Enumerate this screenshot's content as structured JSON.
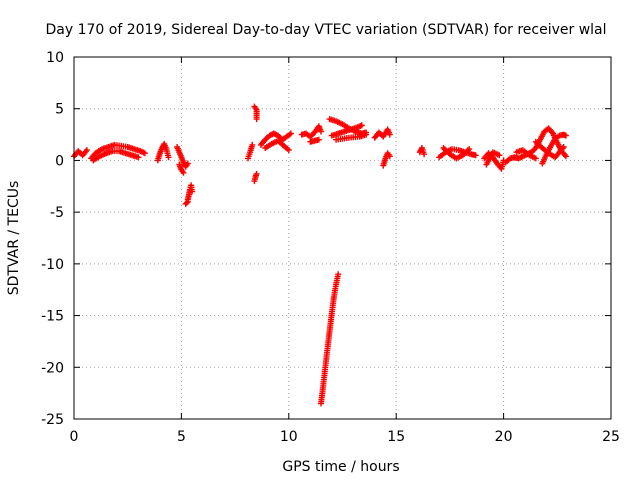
{
  "chart_data": {
    "type": "scatter",
    "title": "Day 170 of 2019, Sidereal Day-to-day VTEC variation (SDTVAR) for receiver wlal",
    "xlabel": "GPS time / hours",
    "ylabel": "SDTVAR / TECUs",
    "xlim": [
      0,
      25
    ],
    "ylim": [
      -25,
      10
    ],
    "xticks": [
      "0",
      "5",
      "10",
      "15",
      "20",
      "25"
    ],
    "yticks": [
      "10",
      "5",
      "0",
      "-5",
      "-10",
      "-15",
      "-20",
      "-25"
    ],
    "grid": true,
    "marker": "+",
    "color": "#ff0000",
    "segments": [
      [
        [
          0.0,
          0.4
        ],
        [
          0.2,
          0.9
        ],
        [
          0.4,
          0.5
        ],
        [
          0.6,
          1.0
        ]
      ],
      [
        [
          0.8,
          0.2
        ],
        [
          1.0,
          0.7
        ],
        [
          1.3,
          1.1
        ],
        [
          1.6,
          1.3
        ],
        [
          1.9,
          1.5
        ],
        [
          2.2,
          1.4
        ],
        [
          2.5,
          1.3
        ],
        [
          2.8,
          1.1
        ],
        [
          3.1,
          0.9
        ],
        [
          3.3,
          0.7
        ]
      ],
      [
        [
          0.9,
          0.0
        ],
        [
          1.2,
          0.4
        ],
        [
          1.5,
          0.7
        ],
        [
          1.8,
          0.9
        ],
        [
          2.1,
          0.9
        ],
        [
          2.4,
          0.7
        ],
        [
          2.7,
          0.5
        ],
        [
          3.0,
          0.3
        ]
      ],
      [
        [
          3.9,
          0.0
        ],
        [
          4.0,
          0.7
        ],
        [
          4.1,
          1.2
        ],
        [
          4.2,
          1.6
        ],
        [
          4.3,
          1.1
        ],
        [
          4.4,
          0.3
        ]
      ],
      [
        [
          4.8,
          1.3
        ],
        [
          4.9,
          0.8
        ],
        [
          5.0,
          0.3
        ],
        [
          5.1,
          -0.2
        ],
        [
          5.2,
          -0.6
        ],
        [
          5.3,
          -0.3
        ]
      ],
      [
        [
          4.9,
          -0.4
        ],
        [
          5.0,
          -0.9
        ],
        [
          5.1,
          -1.2
        ]
      ],
      [
        [
          5.3,
          -3.8
        ],
        [
          5.35,
          -3.3
        ],
        [
          5.4,
          -2.8
        ],
        [
          5.45,
          -2.4
        ],
        [
          5.5,
          -3.0
        ]
      ],
      [
        [
          5.2,
          -4.2
        ],
        [
          5.3,
          -4.0
        ]
      ],
      [
        [
          8.1,
          0.2
        ],
        [
          8.2,
          0.8
        ],
        [
          8.3,
          1.5
        ]
      ],
      [
        [
          8.4,
          -2.0
        ],
        [
          8.45,
          -1.6
        ],
        [
          8.5,
          -1.3
        ]
      ],
      [
        [
          8.4,
          5.2
        ],
        [
          8.5,
          4.9
        ],
        [
          8.5,
          4.0
        ]
      ],
      [
        [
          8.7,
          1.5
        ],
        [
          8.9,
          2.0
        ],
        [
          9.1,
          2.4
        ],
        [
          9.3,
          2.6
        ],
        [
          9.5,
          2.4
        ],
        [
          9.7,
          2.0
        ],
        [
          9.9,
          2.3
        ],
        [
          10.1,
          2.6
        ]
      ],
      [
        [
          8.9,
          1.2
        ],
        [
          9.2,
          1.6
        ],
        [
          9.5,
          1.9
        ],
        [
          10.0,
          1.0
        ]
      ],
      [
        [
          10.6,
          2.5
        ],
        [
          10.8,
          2.6
        ],
        [
          11.0,
          2.3
        ],
        [
          11.2,
          2.7
        ],
        [
          11.4,
          3.3
        ],
        [
          11.5,
          2.8
        ]
      ],
      [
        [
          11.0,
          1.8
        ],
        [
          11.2,
          1.9
        ],
        [
          11.4,
          2.0
        ]
      ],
      [
        [
          11.9,
          4.0
        ],
        [
          12.2,
          3.8
        ],
        [
          12.5,
          3.5
        ],
        [
          12.8,
          3.1
        ],
        [
          13.1,
          2.8
        ],
        [
          13.4,
          2.6
        ],
        [
          13.6,
          2.7
        ]
      ],
      [
        [
          12.0,
          2.4
        ],
        [
          12.3,
          2.6
        ],
        [
          12.6,
          2.8
        ],
        [
          12.9,
          3.0
        ],
        [
          13.2,
          3.2
        ],
        [
          13.4,
          3.4
        ]
      ],
      [
        [
          12.2,
          2.0
        ],
        [
          12.8,
          2.2
        ],
        [
          13.3,
          2.3
        ],
        [
          13.6,
          2.5
        ]
      ],
      [
        [
          14.0,
          2.2
        ],
        [
          14.2,
          2.7
        ],
        [
          14.4,
          2.3
        ],
        [
          14.6,
          3.0
        ],
        [
          14.7,
          2.5
        ]
      ],
      [
        [
          14.4,
          -0.5
        ],
        [
          14.5,
          0.2
        ],
        [
          14.6,
          0.7
        ],
        [
          14.7,
          0.4
        ]
      ],
      [
        [
          16.1,
          0.8
        ],
        [
          16.2,
          1.2
        ],
        [
          16.3,
          0.6
        ]
      ],
      [
        [
          17.0,
          0.3
        ],
        [
          17.3,
          0.8
        ],
        [
          17.6,
          1.1
        ],
        [
          17.9,
          1.0
        ],
        [
          18.2,
          0.8
        ],
        [
          18.5,
          0.6
        ],
        [
          18.7,
          0.5
        ]
      ],
      [
        [
          17.2,
          1.2
        ],
        [
          17.5,
          0.6
        ],
        [
          17.8,
          0.2
        ],
        [
          18.1,
          0.5
        ],
        [
          18.4,
          1.1
        ]
      ],
      [
        [
          19.1,
          0.2
        ],
        [
          19.3,
          0.7
        ],
        [
          19.5,
          0.3
        ],
        [
          19.7,
          -0.3
        ],
        [
          19.9,
          -0.8
        ],
        [
          20.0,
          0.0
        ]
      ],
      [
        [
          19.2,
          -0.4
        ],
        [
          19.5,
          0.8
        ],
        [
          19.8,
          0.5
        ]
      ],
      [
        [
          20.1,
          -0.2
        ],
        [
          20.3,
          0.2
        ],
        [
          20.5,
          0.3
        ],
        [
          20.7,
          0.2
        ],
        [
          20.9,
          0.4
        ],
        [
          21.1,
          0.6
        ],
        [
          21.3,
          0.8
        ],
        [
          21.5,
          1.2
        ],
        [
          21.7,
          2.0
        ],
        [
          21.9,
          2.8
        ],
        [
          22.1,
          3.1
        ],
        [
          22.3,
          2.6
        ],
        [
          22.5,
          1.7
        ],
        [
          22.7,
          0.9
        ],
        [
          22.9,
          0.4
        ]
      ],
      [
        [
          20.6,
          0.8
        ],
        [
          20.9,
          1.0
        ],
        [
          21.2,
          0.5
        ],
        [
          21.5,
          0.2
        ]
      ],
      [
        [
          21.8,
          -0.3
        ],
        [
          22.0,
          0.6
        ],
        [
          22.2,
          1.4
        ],
        [
          22.4,
          2.1
        ],
        [
          22.6,
          2.4
        ],
        [
          22.8,
          2.5
        ],
        [
          22.9,
          2.4
        ]
      ],
      [
        [
          21.5,
          1.8
        ],
        [
          21.8,
          1.2
        ],
        [
          22.1,
          0.7
        ],
        [
          22.4,
          0.3
        ],
        [
          22.6,
          0.8
        ],
        [
          22.8,
          1.3
        ]
      ],
      [
        [
          11.5,
          -23.5
        ],
        [
          11.6,
          -21.8
        ],
        [
          11.7,
          -20.0
        ],
        [
          11.8,
          -18.2
        ],
        [
          11.9,
          -16.5
        ],
        [
          12.0,
          -14.8
        ],
        [
          12.1,
          -13.2
        ],
        [
          12.2,
          -12.0
        ],
        [
          12.3,
          -11.0
        ]
      ]
    ]
  }
}
